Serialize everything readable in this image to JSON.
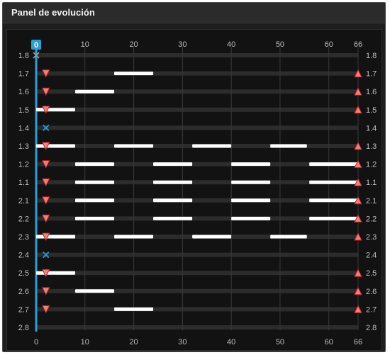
{
  "panel": {
    "title": "Panel de evolución"
  },
  "cursor": {
    "value": "0"
  },
  "chart_data": {
    "type": "timeline",
    "x_ticks": [
      "0",
      "10",
      "20",
      "30",
      "40",
      "50",
      "60",
      "66"
    ],
    "x_tick_values": [
      0,
      10,
      20,
      30,
      40,
      50,
      60,
      66
    ],
    "xlim": [
      0,
      66
    ],
    "rows": [
      {
        "label": "1.8",
        "segments": [],
        "markers": [
          {
            "x": 0,
            "kind": "x-grey"
          }
        ]
      },
      {
        "label": "1.7",
        "segments": [
          [
            16,
            24
          ]
        ],
        "markers": [
          {
            "x": 2,
            "kind": "down"
          },
          {
            "x": 66,
            "kind": "up"
          }
        ]
      },
      {
        "label": "1.6",
        "segments": [
          [
            8,
            16
          ]
        ],
        "markers": [
          {
            "x": 2,
            "kind": "down"
          },
          {
            "x": 66,
            "kind": "up"
          }
        ]
      },
      {
        "label": "1.5",
        "segments": [
          [
            0,
            8
          ]
        ],
        "markers": [
          {
            "x": 2,
            "kind": "down"
          },
          {
            "x": 66,
            "kind": "up"
          }
        ]
      },
      {
        "label": "1.4",
        "segments": [],
        "markers": [
          {
            "x": 2,
            "kind": "x-blue"
          }
        ]
      },
      {
        "label": "1.3",
        "segments": [
          [
            0,
            8
          ],
          [
            16,
            24
          ],
          [
            32,
            40
          ],
          [
            48,
            55.5
          ]
        ],
        "markers": [
          {
            "x": 2,
            "kind": "down"
          },
          {
            "x": 66,
            "kind": "up"
          }
        ]
      },
      {
        "label": "1.2",
        "segments": [
          [
            8,
            16
          ],
          [
            24,
            32
          ],
          [
            40,
            48
          ],
          [
            56,
            66
          ]
        ],
        "markers": [
          {
            "x": 2,
            "kind": "down"
          },
          {
            "x": 66,
            "kind": "up"
          }
        ]
      },
      {
        "label": "1.1",
        "segments": [
          [
            8,
            16
          ],
          [
            24,
            32
          ],
          [
            40,
            48
          ],
          [
            56,
            66
          ]
        ],
        "markers": [
          {
            "x": 2,
            "kind": "down"
          },
          {
            "x": 66,
            "kind": "up"
          }
        ]
      },
      {
        "label": "2.1",
        "segments": [
          [
            8,
            16
          ],
          [
            24,
            32
          ],
          [
            40,
            48
          ],
          [
            56,
            66
          ]
        ],
        "markers": [
          {
            "x": 2,
            "kind": "down"
          },
          {
            "x": 66,
            "kind": "up"
          }
        ]
      },
      {
        "label": "2.2",
        "segments": [
          [
            8,
            16
          ],
          [
            24,
            32
          ],
          [
            40,
            48
          ],
          [
            56,
            66
          ]
        ],
        "markers": [
          {
            "x": 2,
            "kind": "down"
          },
          {
            "x": 66,
            "kind": "up"
          }
        ]
      },
      {
        "label": "2.3",
        "segments": [
          [
            0,
            8
          ],
          [
            16,
            24
          ],
          [
            32,
            40
          ],
          [
            48,
            55.5
          ]
        ],
        "markers": [
          {
            "x": 2,
            "kind": "down"
          },
          {
            "x": 66,
            "kind": "up"
          }
        ]
      },
      {
        "label": "2.4",
        "segments": [],
        "markers": [
          {
            "x": 2,
            "kind": "x-blue"
          }
        ]
      },
      {
        "label": "2.5",
        "segments": [
          [
            0,
            8
          ]
        ],
        "markers": [
          {
            "x": 2,
            "kind": "down"
          },
          {
            "x": 66,
            "kind": "up"
          }
        ]
      },
      {
        "label": "2.6",
        "segments": [
          [
            8,
            16
          ]
        ],
        "markers": [
          {
            "x": 2,
            "kind": "down"
          },
          {
            "x": 66,
            "kind": "up"
          }
        ]
      },
      {
        "label": "2.7",
        "segments": [
          [
            16,
            24
          ]
        ],
        "markers": [
          {
            "x": 2,
            "kind": "down"
          },
          {
            "x": 66,
            "kind": "up"
          }
        ]
      },
      {
        "label": "2.8",
        "segments": [],
        "markers": []
      }
    ],
    "colors": {
      "background": "#121212",
      "row_track": "#2c2c2c",
      "grid": "#3a3a3a",
      "segment": "#ffffff",
      "marker_fill": "#f08080",
      "marker_stroke": "#c02020",
      "cursor": "#2a9fd6",
      "cross_blue": "#2a9fd6",
      "cross_grey": "#9a9a9a",
      "text": "#bdbdbd"
    }
  }
}
